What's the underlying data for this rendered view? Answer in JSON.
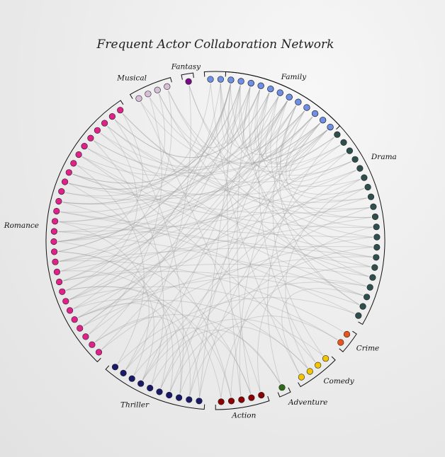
{
  "chart_data": {
    "type": "network-chord",
    "title": "Frequent Actor Collaboration Network",
    "groups": [
      {
        "name": "Drama",
        "count": 32,
        "color": "#2f4f4f"
      },
      {
        "name": "Crime",
        "count": 2,
        "color": "#e8541c"
      },
      {
        "name": "Comedy",
        "count": 4,
        "color": "#f2c500"
      },
      {
        "name": "Adventure",
        "count": 1,
        "color": "#2e6b17"
      },
      {
        "name": "Action",
        "count": 5,
        "color": "#8b0000"
      },
      {
        "name": "Thriller",
        "count": 10,
        "color": "#1a1a6a"
      },
      {
        "name": "Romance",
        "count": 28,
        "color": "#e0218a"
      },
      {
        "name": "Musical",
        "count": 4,
        "color": "#d8bfd8"
      },
      {
        "name": "Fantasy",
        "count": 1,
        "color": "#7a0a8a"
      },
      {
        "name": "Family",
        "count": 14,
        "color": "#6f8ee6"
      }
    ],
    "edges": [
      [
        0,
        60
      ],
      [
        0,
        65
      ],
      [
        0,
        70
      ],
      [
        0,
        90
      ],
      [
        1,
        55
      ],
      [
        1,
        98
      ],
      [
        2,
        40
      ],
      [
        2,
        72
      ],
      [
        3,
        61
      ],
      [
        3,
        95
      ],
      [
        4,
        35
      ],
      [
        4,
        80
      ],
      [
        5,
        68
      ],
      [
        5,
        100
      ],
      [
        6,
        45
      ],
      [
        6,
        88
      ],
      [
        7,
        62
      ],
      [
        7,
        30
      ],
      [
        8,
        77
      ],
      [
        8,
        52
      ],
      [
        9,
        41
      ],
      [
        9,
        93
      ],
      [
        10,
        58
      ],
      [
        10,
        66
      ],
      [
        11,
        83
      ],
      [
        11,
        47
      ],
      [
        12,
        71
      ],
      [
        12,
        38
      ],
      [
        13,
        86
      ],
      [
        13,
        56
      ],
      [
        14,
        64
      ],
      [
        14,
        44
      ],
      [
        15,
        79
      ],
      [
        15,
        99
      ],
      [
        16,
        50
      ],
      [
        16,
        74
      ],
      [
        17,
        36
      ],
      [
        17,
        89
      ],
      [
        18,
        67
      ],
      [
        18,
        42
      ],
      [
        19,
        92
      ],
      [
        19,
        59
      ],
      [
        20,
        48
      ],
      [
        20,
        73
      ],
      [
        21,
        81
      ],
      [
        21,
        63
      ],
      [
        22,
        39
      ],
      [
        22,
        97
      ],
      [
        23,
        54
      ],
      [
        23,
        69
      ],
      [
        24,
        85
      ],
      [
        24,
        46
      ],
      [
        25,
        76
      ],
      [
        25,
        57
      ],
      [
        26,
        43
      ],
      [
        26,
        94
      ],
      [
        27,
        62
      ],
      [
        27,
        78
      ],
      [
        28,
        51
      ],
      [
        28,
        84
      ],
      [
        29,
        67
      ],
      [
        29,
        37
      ],
      [
        30,
        91
      ],
      [
        31,
        53
      ],
      [
        31,
        70
      ],
      [
        32,
        64
      ],
      [
        33,
        60
      ],
      [
        34,
        96
      ],
      [
        35,
        75
      ],
      [
        36,
        58
      ],
      [
        37,
        87
      ],
      [
        38,
        49
      ],
      [
        39,
        82
      ],
      [
        40,
        66
      ],
      [
        41,
        101
      ],
      [
        42,
        72
      ],
      [
        43,
        61
      ],
      [
        44,
        90
      ],
      [
        45,
        55
      ],
      [
        46,
        80
      ],
      [
        47,
        65
      ],
      [
        48,
        99
      ],
      [
        49,
        77
      ],
      [
        50,
        93
      ],
      [
        51,
        68
      ],
      [
        52,
        86
      ],
      [
        53,
        74
      ],
      [
        54,
        96
      ],
      [
        56,
        83
      ],
      [
        57,
        95
      ],
      [
        59,
        88
      ],
      [
        60,
        100
      ],
      [
        61,
        79
      ],
      [
        62,
        91
      ],
      [
        63,
        85
      ],
      [
        64,
        97
      ],
      [
        65,
        89
      ],
      [
        66,
        81
      ],
      [
        67,
        98
      ],
      [
        68,
        92
      ],
      [
        69,
        94
      ],
      [
        70,
        84
      ],
      [
        71,
        87
      ],
      [
        72,
        101
      ],
      [
        73,
        90
      ],
      [
        75,
        95
      ],
      [
        76,
        99
      ],
      [
        78,
        97
      ],
      [
        80,
        93
      ],
      [
        82,
        100
      ],
      [
        2,
        88
      ],
      [
        4,
        95
      ],
      [
        6,
        70
      ],
      [
        8,
        99
      ],
      [
        10,
        77
      ],
      [
        12,
        92
      ],
      [
        14,
        85
      ],
      [
        16,
        66
      ],
      [
        18,
        96
      ],
      [
        20,
        81
      ],
      [
        22,
        73
      ],
      [
        24,
        64
      ],
      [
        26,
        69
      ],
      [
        28,
        58
      ],
      [
        30,
        62
      ],
      [
        1,
        73
      ],
      [
        3,
        84
      ],
      [
        5,
        91
      ],
      [
        7,
        57
      ],
      [
        9,
        66
      ],
      [
        11,
        100
      ],
      [
        13,
        72
      ],
      [
        15,
        88
      ],
      [
        17,
        60
      ],
      [
        19,
        79
      ],
      [
        21,
        95
      ],
      [
        23,
        86
      ],
      [
        25,
        68
      ],
      [
        27,
        90
      ],
      [
        29,
        75
      ],
      [
        33,
        45
      ],
      [
        34,
        50
      ],
      [
        36,
        47
      ],
      [
        38,
        55
      ],
      [
        40,
        52
      ],
      [
        42,
        59
      ],
      [
        44,
        61
      ],
      [
        46,
        63
      ],
      [
        48,
        58
      ],
      [
        50,
        65
      ]
    ]
  }
}
